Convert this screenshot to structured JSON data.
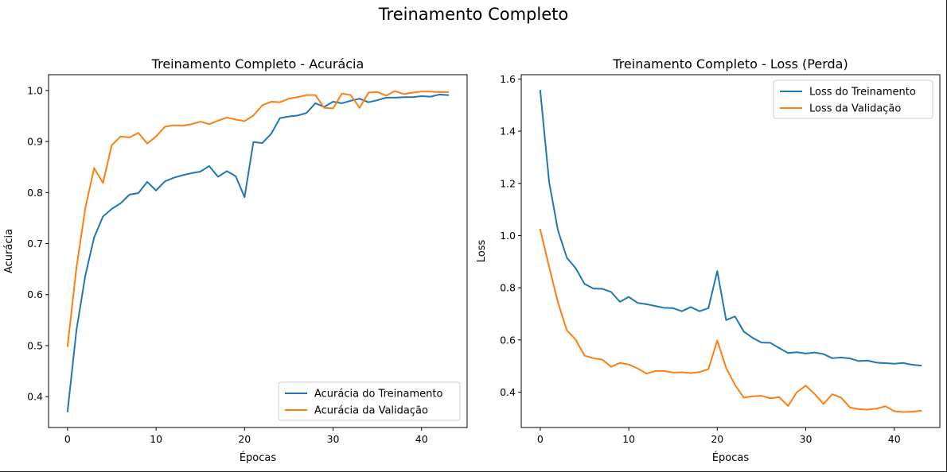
{
  "figure": {
    "suptitle": "Treinamento Completo"
  },
  "chart_data": [
    {
      "type": "line",
      "title": "Treinamento Completo - Acurácia",
      "xlabel": "Épocas",
      "ylabel": "Acurácia",
      "xlim": [
        -2.15,
        45.15
      ],
      "ylim": [
        0.3395,
        1.031
      ],
      "xticks": [
        0,
        10,
        20,
        30,
        40
      ],
      "yticks": [
        0.4,
        0.5,
        0.6,
        0.7,
        0.8,
        0.9,
        1.0
      ],
      "ytick_labels": [
        "0.4",
        "0.5",
        "0.6",
        "0.7",
        "0.8",
        "0.9",
        "1.0"
      ],
      "grid": false,
      "legend": "lower right",
      "x": [
        0,
        1,
        2,
        3,
        4,
        5,
        6,
        7,
        8,
        9,
        10,
        11,
        12,
        13,
        14,
        15,
        16,
        17,
        18,
        19,
        20,
        21,
        22,
        23,
        24,
        25,
        26,
        27,
        28,
        29,
        30,
        31,
        32,
        33,
        34,
        35,
        36,
        37,
        38,
        39,
        40,
        41,
        42,
        43
      ],
      "series": [
        {
          "name": "Acurácia do Treinamento",
          "color": "#1f77b4",
          "values": [
            0.371,
            0.53,
            0.637,
            0.712,
            0.753,
            0.768,
            0.779,
            0.796,
            0.799,
            0.821,
            0.804,
            0.822,
            0.829,
            0.834,
            0.838,
            0.841,
            0.852,
            0.831,
            0.842,
            0.832,
            0.791,
            0.899,
            0.897,
            0.915,
            0.946,
            0.949,
            0.951,
            0.956,
            0.975,
            0.968,
            0.978,
            0.975,
            0.98,
            0.984,
            0.977,
            0.981,
            0.986,
            0.986,
            0.987,
            0.987,
            0.989,
            0.988,
            0.992,
            0.991
          ]
        },
        {
          "name": "Acurácia da Validação",
          "color": "#ff7f0e",
          "values": [
            0.499,
            0.652,
            0.769,
            0.848,
            0.819,
            0.893,
            0.91,
            0.908,
            0.917,
            0.896,
            0.91,
            0.929,
            0.932,
            0.931,
            0.934,
            0.939,
            0.934,
            0.941,
            0.947,
            0.943,
            0.94,
            0.951,
            0.971,
            0.978,
            0.977,
            0.984,
            0.987,
            0.991,
            0.991,
            0.966,
            0.965,
            0.994,
            0.991,
            0.966,
            0.996,
            0.997,
            0.99,
            0.999,
            0.993,
            0.996,
            0.998,
            0.998,
            0.997,
            0.997
          ]
        }
      ]
    },
    {
      "type": "line",
      "title": "Treinamento Completo - Loss (Perda)",
      "xlabel": "Épocas",
      "ylabel": "Loss",
      "xlim": [
        -2.15,
        45.15
      ],
      "ylim": [
        0.2645,
        1.6165
      ],
      "xticks": [
        0,
        10,
        20,
        30,
        40
      ],
      "yticks": [
        0.4,
        0.6,
        0.8,
        1.0,
        1.2,
        1.4,
        1.6
      ],
      "ytick_labels": [
        "0.4",
        "0.6",
        "0.8",
        "1.0",
        "1.2",
        "1.4",
        "1.6"
      ],
      "grid": false,
      "legend": "upper right",
      "x": [
        0,
        1,
        2,
        3,
        4,
        5,
        6,
        7,
        8,
        9,
        10,
        11,
        12,
        13,
        14,
        15,
        16,
        17,
        18,
        19,
        20,
        21,
        22,
        23,
        24,
        25,
        26,
        27,
        28,
        29,
        30,
        31,
        32,
        33,
        34,
        35,
        36,
        37,
        38,
        39,
        40,
        41,
        42,
        43
      ],
      "series": [
        {
          "name": "Loss do Treinamento",
          "color": "#1f77b4",
          "values": [
            1.555,
            1.205,
            1.02,
            0.915,
            0.875,
            0.815,
            0.797,
            0.796,
            0.784,
            0.746,
            0.765,
            0.742,
            0.737,
            0.73,
            0.723,
            0.722,
            0.71,
            0.726,
            0.71,
            0.722,
            0.864,
            0.676,
            0.69,
            0.632,
            0.608,
            0.59,
            0.589,
            0.569,
            0.55,
            0.553,
            0.548,
            0.552,
            0.546,
            0.53,
            0.533,
            0.529,
            0.519,
            0.521,
            0.513,
            0.511,
            0.509,
            0.512,
            0.505,
            0.502
          ]
        },
        {
          "name": "Loss da Validação",
          "color": "#ff7f0e",
          "values": [
            1.023,
            0.88,
            0.744,
            0.637,
            0.601,
            0.54,
            0.53,
            0.525,
            0.497,
            0.512,
            0.506,
            0.491,
            0.471,
            0.481,
            0.481,
            0.475,
            0.476,
            0.473,
            0.477,
            0.488,
            0.598,
            0.493,
            0.428,
            0.379,
            0.384,
            0.386,
            0.376,
            0.381,
            0.347,
            0.4,
            0.425,
            0.393,
            0.355,
            0.392,
            0.379,
            0.341,
            0.335,
            0.333,
            0.337,
            0.346,
            0.327,
            0.324,
            0.325,
            0.329
          ]
        }
      ]
    }
  ]
}
